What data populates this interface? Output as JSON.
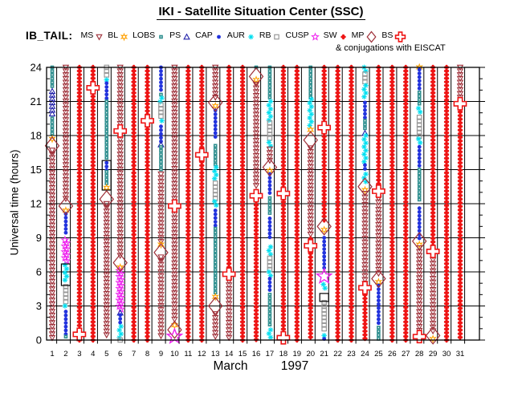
{
  "title": "IKI - Satellite Situation Center (SSC)",
  "dataset_label": "IB_TAIL:",
  "conjugation_note": "& conjugations with EISCAT",
  "axes": {
    "y_title": "Universal time (hours)",
    "y_range": [
      0,
      24
    ],
    "y_ticks": [
      0,
      3,
      6,
      9,
      12,
      15,
      18,
      21,
      24
    ],
    "x_days": [
      1,
      2,
      3,
      4,
      5,
      6,
      7,
      8,
      9,
      10,
      11,
      12,
      13,
      14,
      15,
      16,
      17,
      18,
      19,
      20,
      21,
      22,
      23,
      24,
      25,
      26,
      27,
      28,
      29,
      30,
      31
    ],
    "x_month_label": "March",
    "x_year_label": "1997",
    "grid": "on"
  },
  "colors": {
    "ms_mp": "#9e2f38",
    "bl": "#ffa000",
    "lobs": "#2f8f8f",
    "ps": "#2222aa",
    "cap": "#2233dd",
    "aur": "#00dff0",
    "rb": "#999999",
    "cusp": "#ee22ee",
    "sw_bs": "#ee1515",
    "frame": "#000000",
    "background": "#ffffff"
  },
  "legend": [
    {
      "id": "MS",
      "label": "MS"
    },
    {
      "id": "BL",
      "label": "BL"
    },
    {
      "id": "LOBS",
      "label": "LOBS"
    },
    {
      "id": "PS",
      "label": "PS"
    },
    {
      "id": "CAP",
      "label": "CAP"
    },
    {
      "id": "AUR",
      "label": "AUR"
    },
    {
      "id": "RB",
      "label": "RB"
    },
    {
      "id": "CUSP",
      "label": "CUSP"
    },
    {
      "id": "SW",
      "label": "SW"
    },
    {
      "id": "MP",
      "label": "MP"
    },
    {
      "id": "BS",
      "label": "BS"
    }
  ],
  "chart_data": {
    "type": "scatter",
    "x_unit": "day of March 1997",
    "y_unit": "universal time, hours",
    "marker_step_hours": 0.33,
    "region_symbols": {
      "MS": "open down-triangle (magnetosheath)",
      "BL": "orange open star (boundary layer)",
      "LOBS": "teal filled square (lobes)",
      "PS": "navy open up-triangle (plasma sheet)",
      "CAP": "blue filled circle (polar cap)",
      "AUR": "cyan asterisk (auroral zone)",
      "RB": "gray open square (radiation belt)",
      "CUSP": "magenta open star (cusp)",
      "SW": "red filled flower (solar wind)",
      "MP": "large open diamond (magnetopause crossing)",
      "BS": "large open cross (bow shock crossing)",
      "RECT": "black rectangle frame (highlighted interval)"
    },
    "days": [
      {
        "d": 1,
        "items": [
          {
            "s": "LOBS",
            "a": 24,
            "b": 22.1
          },
          {
            "s": "PS",
            "a": 21.9,
            "b": 19.7
          },
          {
            "s": "LOBS",
            "a": 19.5,
            "b": 17.9
          },
          {
            "s": "BL",
            "t": 17.7
          },
          {
            "s": "MP",
            "t": 17.1
          },
          {
            "s": "MS",
            "a": 16.7,
            "b": 0.1
          }
        ]
      },
      {
        "d": 2,
        "items": [
          {
            "s": "MS",
            "a": 24,
            "b": 12.2
          },
          {
            "s": "MP",
            "t": 11.8
          },
          {
            "s": "BL",
            "t": 11.4
          },
          {
            "s": "CAP",
            "a": 11.1,
            "b": 9.3
          },
          {
            "s": "CUSP",
            "a": 8.8,
            "b": 6.8
          },
          {
            "s": "RECT",
            "a": 6.7,
            "b": 4.8
          },
          {
            "s": "AUR",
            "a": 6.6,
            "b": 5.0
          },
          {
            "s": "RB",
            "a": 4.7,
            "b": 3.2
          },
          {
            "s": "AUR",
            "a": 3.0,
            "b": 2.7
          },
          {
            "s": "CAP",
            "a": 2.5,
            "b": 0.5
          },
          {
            "s": "LOBS",
            "a": 0.3,
            "b": 0
          }
        ]
      },
      {
        "d": 3,
        "items": [
          {
            "s": "SW",
            "a": 24,
            "b": 0
          },
          {
            "s": "BS",
            "t": 0.5
          }
        ]
      },
      {
        "d": 4,
        "items": [
          {
            "s": "SW",
            "a": 24,
            "b": 0
          },
          {
            "s": "BS",
            "t": 22.2
          }
        ]
      },
      {
        "d": 5,
        "items": [
          {
            "s": "RB",
            "a": 24,
            "b": 23.2
          },
          {
            "s": "AUR",
            "t": 22.9
          },
          {
            "s": "CAP",
            "a": 22.6,
            "b": 21.2
          },
          {
            "s": "LOBS",
            "a": 21,
            "b": 15.9
          },
          {
            "s": "RECT",
            "a": 15.8,
            "b": 13.2
          },
          {
            "s": "CAP",
            "a": 15.6,
            "b": 14.9
          },
          {
            "s": "LOBS",
            "a": 14.8,
            "b": 13.6
          },
          {
            "s": "BL",
            "t": 13.4
          },
          {
            "s": "MP",
            "t": 12.4
          },
          {
            "s": "MS",
            "a": 12,
            "b": 0.2
          }
        ]
      },
      {
        "d": 6,
        "items": [
          {
            "s": "MS",
            "a": 24,
            "b": 18.7
          },
          {
            "s": "BS",
            "t": 18.4
          },
          {
            "s": "MS",
            "a": 18,
            "b": 7.2
          },
          {
            "s": "MP",
            "t": 6.8
          },
          {
            "s": "BL",
            "t": 6.4
          },
          {
            "s": "CUSP",
            "a": 6.1,
            "b": 2.6
          },
          {
            "s": "PS",
            "t": 2.4
          },
          {
            "s": "CAP",
            "a": 2.2,
            "b": 1.5
          },
          {
            "s": "AUR",
            "a": 1.2,
            "b": 0.2
          },
          {
            "s": "RB",
            "t": 0
          }
        ]
      },
      {
        "d": 7,
        "items": [
          {
            "s": "SW",
            "a": 24,
            "b": 0
          }
        ]
      },
      {
        "d": 8,
        "items": [
          {
            "s": "SW",
            "a": 24,
            "b": 0
          },
          {
            "s": "BS",
            "t": 19.3
          }
        ]
      },
      {
        "d": 9,
        "items": [
          {
            "s": "CAP",
            "a": 24,
            "b": 21.7
          },
          {
            "s": "LOBS",
            "t": 21.6
          },
          {
            "s": "AUR",
            "a": 21.3,
            "b": 20.9
          },
          {
            "s": "RB",
            "a": 20.7,
            "b": 19.5
          },
          {
            "s": "AUR",
            "a": 19.3,
            "b": 19.0
          },
          {
            "s": "CAP",
            "a": 18.8,
            "b": 17.4
          },
          {
            "s": "PS",
            "t": 17.2
          },
          {
            "s": "LOBS",
            "a": 17,
            "b": 14.9
          },
          {
            "s": "MS",
            "a": 14.6,
            "b": 8.6
          },
          {
            "s": "BL",
            "t": 8.4
          },
          {
            "s": "MP",
            "t": 7.7
          },
          {
            "s": "MS",
            "a": 7.3,
            "b": 0.1
          }
        ]
      },
      {
        "d": 10,
        "items": [
          {
            "s": "MS",
            "a": 24,
            "b": 12.1
          },
          {
            "s": "BS",
            "t": 11.8
          },
          {
            "s": "MS",
            "a": 11.4,
            "b": 1.6
          },
          {
            "s": "BL",
            "t": 1.3
          },
          {
            "s": "MP",
            "t": 0.9
          },
          {
            "s": "CUSPL",
            "t": 0.3
          }
        ]
      },
      {
        "d": 11,
        "items": [
          {
            "s": "SW",
            "a": 24,
            "b": 0
          }
        ]
      },
      {
        "d": 12,
        "items": [
          {
            "s": "SW",
            "a": 24,
            "b": 0
          },
          {
            "s": "BS",
            "t": 16.3
          }
        ]
      },
      {
        "d": 13,
        "items": [
          {
            "s": "MS",
            "a": 24,
            "b": 21.3
          },
          {
            "s": "MP",
            "t": 20.9
          },
          {
            "s": "BL",
            "t": 20.6
          },
          {
            "s": "CAP",
            "a": 20.2,
            "b": 17.6
          },
          {
            "s": "LOBS",
            "a": 17.1,
            "b": 15.3
          },
          {
            "s": "AUR",
            "a": 15.2,
            "b": 13.9
          },
          {
            "s": "RB",
            "a": 13.8,
            "b": 12.3
          },
          {
            "s": "AUR",
            "a": 12.2,
            "b": 11.6
          },
          {
            "s": "CAP",
            "a": 11.4,
            "b": 10.0
          },
          {
            "s": "LOBS",
            "a": 9.8,
            "b": 4.1
          },
          {
            "s": "BL",
            "t": 3.8
          },
          {
            "s": "MP",
            "t": 3.0
          },
          {
            "s": "MS",
            "a": 2.3,
            "b": 0.2
          }
        ]
      },
      {
        "d": 14,
        "items": [
          {
            "s": "SW",
            "a": 24,
            "b": 6.1
          },
          {
            "s": "BS",
            "t": 5.8
          },
          {
            "s": "MS",
            "a": 5.5,
            "b": 0.2
          }
        ]
      },
      {
        "d": 15,
        "items": [
          {
            "s": "SW",
            "a": 24,
            "b": 0
          }
        ]
      },
      {
        "d": 16,
        "items": [
          {
            "s": "LOBS",
            "t": 24
          },
          {
            "s": "MP",
            "t": 23.2
          },
          {
            "s": "BL",
            "t": 22.9
          },
          {
            "s": "MS",
            "a": 22.5,
            "b": 13.4
          },
          {
            "s": "BS",
            "t": 12.7
          },
          {
            "s": "SW",
            "a": 12.2,
            "b": 0
          }
        ]
      },
      {
        "d": 17,
        "items": [
          {
            "s": "LOBS",
            "a": 24,
            "b": 21.2
          },
          {
            "s": "AUR",
            "a": 21,
            "b": 19.3
          },
          {
            "s": "RB",
            "a": 19.1,
            "b": 17.6
          },
          {
            "s": "AUR",
            "a": 17.4,
            "b": 17.0
          },
          {
            "s": "MS",
            "a": 16.8,
            "b": 15.5
          },
          {
            "s": "MP",
            "t": 15.2
          },
          {
            "s": "BL",
            "t": 14.9
          },
          {
            "s": "CAP",
            "a": 14.6,
            "b": 12.8
          },
          {
            "s": "LOBS",
            "a": 12.5,
            "b": 11.0
          },
          {
            "s": "CAP",
            "a": 10.7,
            "b": 9.0
          },
          {
            "s": "AUR",
            "a": 8.2,
            "b": 7.3
          },
          {
            "s": "RB",
            "a": 7.2,
            "b": 6.2
          },
          {
            "s": "AUR",
            "a": 6.0,
            "b": 5.6
          },
          {
            "s": "CAP",
            "a": 5.4,
            "b": 4.2
          },
          {
            "s": "LOBS",
            "a": 4.0,
            "b": 1.2
          },
          {
            "s": "AUR",
            "a": 0.9,
            "b": 0.1
          }
        ]
      },
      {
        "d": 18,
        "items": [
          {
            "s": "SW",
            "a": 24,
            "b": 0
          },
          {
            "s": "BS",
            "t": 12.9
          },
          {
            "s": "BS",
            "t": 0.2
          }
        ]
      },
      {
        "d": 19,
        "items": [
          {
            "s": "SW",
            "a": 24,
            "b": 0
          }
        ]
      },
      {
        "d": 20,
        "items": [
          {
            "s": "LOBS",
            "a": 24,
            "b": 21.3
          },
          {
            "s": "AUR",
            "a": 21.2,
            "b": 18.7
          },
          {
            "s": "BL",
            "t": 18.5
          },
          {
            "s": "MP",
            "t": 17.6
          },
          {
            "s": "MS",
            "a": 16.9,
            "b": 9.2
          },
          {
            "s": "BS",
            "t": 8.3
          },
          {
            "s": "SW",
            "a": 8.9,
            "b": 0
          }
        ]
      },
      {
        "d": 21,
        "items": [
          {
            "s": "SW",
            "a": 24,
            "b": 10.3
          },
          {
            "s": "BS",
            "t": 18.7
          },
          {
            "s": "MP",
            "t": 10.0
          },
          {
            "s": "BL",
            "t": 9.7
          },
          {
            "s": "CAP",
            "a": 9.0,
            "b": 6.1
          },
          {
            "s": "CUSPL",
            "t": 5.6
          },
          {
            "s": "AUR",
            "a": 4.9,
            "b": 4.3
          },
          {
            "s": "RECT",
            "a": 4.1,
            "b": 3.4
          },
          {
            "s": "RB",
            "a": 3.3,
            "b": 0.7
          },
          {
            "s": "AUR",
            "t": 0.4
          },
          {
            "s": "CAP",
            "t": 0.1
          }
        ]
      },
      {
        "d": 22,
        "items": [
          {
            "s": "SW",
            "a": 24,
            "b": 0
          }
        ]
      },
      {
        "d": 23,
        "items": [
          {
            "s": "SW",
            "a": 24,
            "b": 0
          }
        ]
      },
      {
        "d": 24,
        "items": [
          {
            "s": "AUR",
            "a": 24,
            "b": 23.5
          },
          {
            "s": "RB",
            "a": 23.4,
            "b": 22.6
          },
          {
            "s": "AUR",
            "a": 22.4,
            "b": 21.1
          },
          {
            "s": "CAP",
            "a": 20.9,
            "b": 19.4
          },
          {
            "s": "LOBS",
            "a": 19.3,
            "b": 18.4
          },
          {
            "s": "PS",
            "t": 18.2
          },
          {
            "s": "AUR",
            "a": 18,
            "b": 15.6
          },
          {
            "s": "CAP",
            "a": 15.4,
            "b": 14.8
          },
          {
            "s": "AUR",
            "a": 14.6,
            "b": 13.9
          },
          {
            "s": "MP",
            "t": 13.5
          },
          {
            "s": "BL",
            "t": 13.2
          },
          {
            "s": "MS",
            "a": 12.9,
            "b": 4.9
          },
          {
            "s": "BS",
            "t": 4.6
          },
          {
            "s": "SW",
            "a": 4.3,
            "b": 0
          }
        ]
      },
      {
        "d": 25,
        "items": [
          {
            "s": "SW",
            "a": 24,
            "b": 13.4
          },
          {
            "s": "BS",
            "t": 13.1
          },
          {
            "s": "MS",
            "a": 12.8,
            "b": 5.7
          },
          {
            "s": "MP",
            "t": 5.4
          },
          {
            "s": "BL",
            "t": 5.1
          },
          {
            "s": "CAP",
            "a": 4.8,
            "b": 1.3
          },
          {
            "s": "LOBS",
            "a": 1.1,
            "b": 0.1
          }
        ]
      },
      {
        "d": 26,
        "items": [
          {
            "s": "SW",
            "a": 24,
            "b": 0
          }
        ]
      },
      {
        "d": 27,
        "items": [
          {
            "s": "SW",
            "a": 24,
            "b": 0
          }
        ]
      },
      {
        "d": 28,
        "items": [
          {
            "s": "BL",
            "t": 24
          },
          {
            "s": "CAP",
            "a": 23.8,
            "b": 22.1
          },
          {
            "s": "LOBS",
            "a": 21.8,
            "b": 20.6
          },
          {
            "s": "AUR",
            "a": 20.4,
            "b": 19.8
          },
          {
            "s": "RB",
            "a": 19.6,
            "b": 17.9
          },
          {
            "s": "AUR",
            "a": 17.7,
            "b": 17.2
          },
          {
            "s": "CAP",
            "a": 17,
            "b": 15.3
          },
          {
            "s": "LOBS",
            "a": 15,
            "b": 12.3
          },
          {
            "s": "CAP",
            "a": 11.6,
            "b": 8.9
          },
          {
            "s": "MP",
            "t": 8.7
          },
          {
            "s": "BL",
            "t": 8.4
          },
          {
            "s": "MS",
            "a": 8.1,
            "b": 0.6
          },
          {
            "s": "BS",
            "t": 0.3
          }
        ]
      },
      {
        "d": 29,
        "items": [
          {
            "s": "SW",
            "a": 24,
            "b": 8.2
          },
          {
            "s": "BS",
            "t": 7.8
          },
          {
            "s": "MS",
            "a": 7.4,
            "b": 0.7
          },
          {
            "s": "MP",
            "t": 0.4
          },
          {
            "s": "BL",
            "t": 0.1
          }
        ]
      },
      {
        "d": 30,
        "items": [
          {
            "s": "SW",
            "a": 24,
            "b": 0
          }
        ]
      },
      {
        "d": 31,
        "items": [
          {
            "s": "MS",
            "a": 24,
            "b": 21.2
          },
          {
            "s": "BS",
            "t": 20.8
          },
          {
            "s": "SW",
            "a": 20.4,
            "b": 0
          }
        ]
      }
    ]
  }
}
